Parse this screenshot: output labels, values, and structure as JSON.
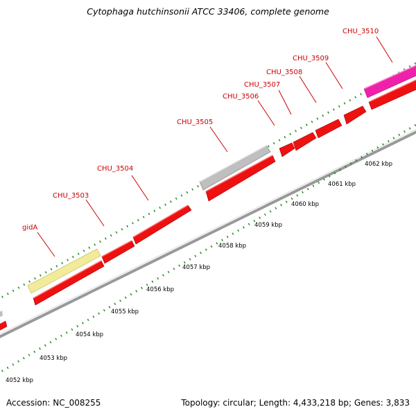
{
  "title": "Cytophaga hutchinsonii ATCC 33406, complete genome",
  "footer": {
    "accession": "Accession: NC_008255",
    "summary": "Topology: circular; Length: 4,433,218 bp; Genes: 3,833"
  },
  "colors": {
    "gene_red": "#ee1111",
    "gene_grey": "#bfbfbf",
    "gene_yellow": "#f2ec9a",
    "gene_magenta": "#ee22aa",
    "backbone": "#777777",
    "tick_green": "#228822",
    "label_red": "#cc0000"
  },
  "gene_labels": [
    "gidA",
    "CHU_3503",
    "CHU_3504",
    "CHU_3505",
    "CHU_3506",
    "CHU_3507",
    "CHU_3508",
    "CHU_3509",
    "CHU_3510"
  ],
  "kbp_labels": [
    "4052 kbp",
    "4053 kbp",
    "4054 kbp",
    "4055 kbp",
    "4056 kbp",
    "4057 kbp",
    "4058 kbp",
    "4059 kbp",
    "4060 kbp",
    "4061 kbp",
    "4062 kbp"
  ]
}
